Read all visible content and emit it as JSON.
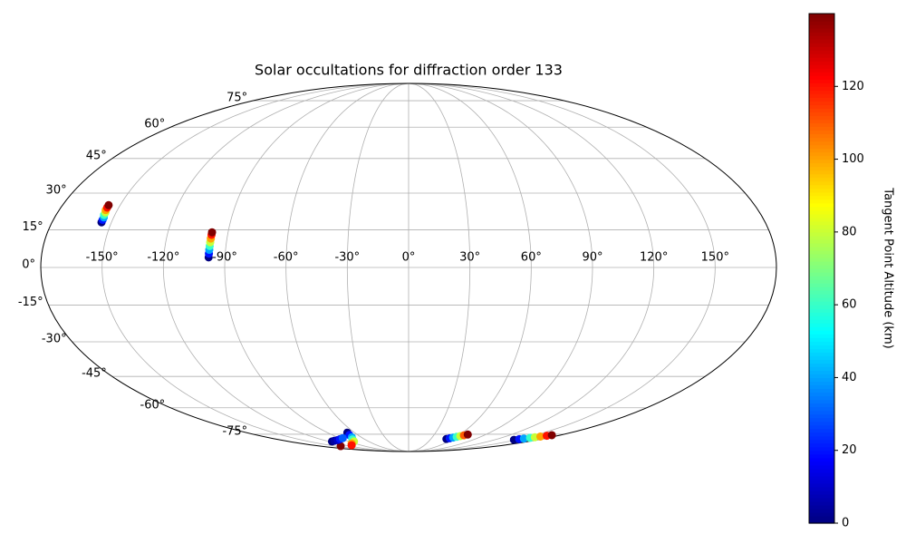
{
  "chart_data": {
    "type": "scatter",
    "projection": "mollweide",
    "title": "Solar occultations for diffraction order 133",
    "grid": true,
    "colormap": "jet",
    "xlim": [
      -180,
      180
    ],
    "ylim": [
      -90,
      90
    ],
    "xticks": [
      {
        "value": -150,
        "label": "-150°"
      },
      {
        "value": -120,
        "label": "-120°"
      },
      {
        "value": -90,
        "label": "-90°"
      },
      {
        "value": -60,
        "label": "-60°"
      },
      {
        "value": -30,
        "label": "-30°"
      },
      {
        "value": 0,
        "label": "0°"
      },
      {
        "value": 30,
        "label": "30°"
      },
      {
        "value": 60,
        "label": "60°"
      },
      {
        "value": 90,
        "label": "90°"
      },
      {
        "value": 120,
        "label": "120°"
      },
      {
        "value": 150,
        "label": "150°"
      }
    ],
    "yticks": [
      {
        "value": -75,
        "label": "-75°"
      },
      {
        "value": -60,
        "label": "-60°"
      },
      {
        "value": -45,
        "label": "-45°"
      },
      {
        "value": -30,
        "label": "-30°"
      },
      {
        "value": -15,
        "label": "-15°"
      },
      {
        "value": 0,
        "label": "0°"
      },
      {
        "value": 15,
        "label": "15°"
      },
      {
        "value": 30,
        "label": "30°"
      },
      {
        "value": 45,
        "label": "45°"
      },
      {
        "value": 60,
        "label": "60°"
      },
      {
        "value": 75,
        "label": "75°"
      }
    ],
    "points": {
      "lon": [
        -155,
        -155,
        -155,
        -155.5,
        -155.5,
        -156,
        -156,
        -156,
        -98,
        -98,
        -98,
        -98,
        -98,
        -98,
        -98,
        -98,
        -68,
        -70,
        -72,
        -77,
        -82,
        -95,
        -108,
        -138,
        -115,
        -108,
        -100,
        -93,
        -86,
        51,
        54,
        57,
        60,
        63,
        66,
        69,
        147,
        150,
        153,
        157,
        160,
        163,
        167,
        170
      ],
      "lat": [
        18,
        19,
        20,
        21,
        22,
        23,
        24,
        25,
        4,
        5.5,
        7,
        8.5,
        10,
        11.5,
        13,
        14,
        -74,
        -75.5,
        -77,
        -78.5,
        -80,
        -81.5,
        -83,
        -83.7,
        -80,
        -79.5,
        -79,
        -78.3,
        -77.6,
        -78.2,
        -77.7,
        -77.2,
        -76.7,
        -76.2,
        -75.7,
        -75.2,
        -78.8,
        -78.3,
        -77.9,
        -77.4,
        -77,
        -76.5,
        -76,
        -75.6
      ],
      "altitude": [
        0,
        20,
        40,
        60,
        80,
        100,
        120,
        140,
        0,
        20,
        40,
        60,
        80,
        100,
        120,
        140,
        0,
        20,
        40,
        60,
        80,
        100,
        120,
        140,
        0,
        5,
        10,
        20,
        30,
        0,
        20,
        40,
        60,
        80,
        110,
        140,
        0,
        20,
        40,
        60,
        80,
        100,
        120,
        140
      ]
    },
    "colorbar": {
      "label": "Tangent Point Altitude (km)",
      "clim": [
        0,
        140
      ],
      "ticks": [
        0,
        20,
        40,
        60,
        80,
        100,
        120
      ]
    }
  }
}
